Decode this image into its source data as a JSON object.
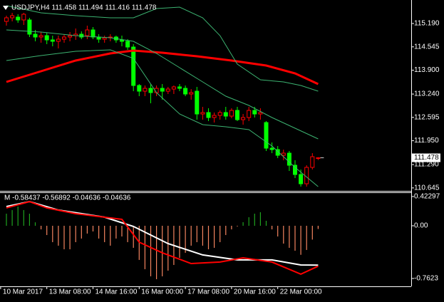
{
  "chart_data": {
    "type": "candlestick",
    "title": "USDJPY,H4  111.458 111.494 111.416 111.478",
    "up_color": "#ff0000",
    "down_color": "#00ff00",
    "candles": [
      [
        115.249,
        115.407,
        115.131,
        115.348
      ],
      [
        115.348,
        115.485,
        115.249,
        115.407
      ],
      [
        115.367,
        115.446,
        115.21,
        115.289
      ],
      [
        115.289,
        115.485,
        115.151,
        115.446
      ],
      [
        115.289,
        115.348,
        114.816,
        114.895
      ],
      [
        114.895,
        115.013,
        114.698,
        114.816
      ],
      [
        114.816,
        114.954,
        114.658,
        114.855
      ],
      [
        114.855,
        114.934,
        114.619,
        114.737
      ],
      [
        114.737,
        114.855,
        114.56,
        114.698
      ],
      [
        114.698,
        114.855,
        114.501,
        114.757
      ],
      [
        114.757,
        114.895,
        114.658,
        114.816
      ],
      [
        114.816,
        114.954,
        114.698,
        114.855
      ],
      [
        114.855,
        115.052,
        114.737,
        114.895
      ],
      [
        114.895,
        114.973,
        114.757,
        114.816
      ],
      [
        114.855,
        115.131,
        114.757,
        115.013
      ],
      [
        115.013,
        115.092,
        114.757,
        114.816
      ],
      [
        114.816,
        114.895,
        114.658,
        114.757
      ],
      [
        114.757,
        114.855,
        114.658,
        114.796
      ],
      [
        114.796,
        114.895,
        114.698,
        114.816
      ],
      [
        114.816,
        114.855,
        114.658,
        114.737
      ],
      [
        114.737,
        114.855,
        114.56,
        114.698
      ],
      [
        114.698,
        114.757,
        114.462,
        114.54
      ],
      [
        114.54,
        114.619,
        113.319,
        113.477
      ],
      [
        113.477,
        113.517,
        113.182,
        113.319
      ],
      [
        113.319,
        113.477,
        113.182,
        113.398
      ],
      [
        113.398,
        113.517,
        112.985,
        113.28
      ],
      [
        113.28,
        113.477,
        113.182,
        113.398
      ],
      [
        113.398,
        113.517,
        113.083,
        113.319
      ],
      [
        113.319,
        113.438,
        113.241,
        113.378
      ],
      [
        113.378,
        113.477,
        113.241,
        113.438
      ],
      [
        113.438,
        113.517,
        113.319,
        113.398
      ],
      [
        113.398,
        113.477,
        113.182,
        113.241
      ],
      [
        113.241,
        113.378,
        113.083,
        113.28
      ],
      [
        113.319,
        113.438,
        112.532,
        112.689
      ],
      [
        112.689,
        112.886,
        112.532,
        112.729
      ],
      [
        112.729,
        112.847,
        112.492,
        112.591
      ],
      [
        112.591,
        112.729,
        112.453,
        112.65
      ],
      [
        112.65,
        112.788,
        112.532,
        112.729
      ],
      [
        112.729,
        112.886,
        112.532,
        112.63
      ],
      [
        112.63,
        112.847,
        112.571,
        112.788
      ],
      [
        112.788,
        112.886,
        112.492,
        112.532
      ],
      [
        112.532,
        112.689,
        112.394,
        112.591
      ],
      [
        112.591,
        112.886,
        112.492,
        112.788
      ],
      [
        112.788,
        112.886,
        112.591,
        112.689
      ],
      [
        112.689,
        112.847,
        112.532,
        112.729
      ],
      [
        112.453,
        112.492,
        111.666,
        111.744
      ],
      [
        111.744,
        111.902,
        111.606,
        111.705
      ],
      [
        111.705,
        111.803,
        111.468,
        111.547
      ],
      [
        111.547,
        111.705,
        111.41,
        111.606
      ],
      [
        111.606,
        111.666,
        111.114,
        111.272
      ],
      [
        111.272,
        111.41,
        110.917,
        111.016
      ],
      [
        111.016,
        111.154,
        110.681,
        110.76
      ],
      [
        110.76,
        111.272,
        110.681,
        111.213
      ],
      [
        111.213,
        111.606,
        111.154,
        111.508
      ],
      [
        111.458,
        111.494,
        111.416,
        111.478
      ]
    ],
    "lines": [
      {
        "color": "#ff0000",
        "width": 3,
        "x": [
          0,
          6,
          12,
          18,
          22,
          27,
          33,
          39,
          45,
          50,
          54
        ],
        "values": [
          113.575,
          113.871,
          114.166,
          114.363,
          114.442,
          114.383,
          114.284,
          114.166,
          114.028,
          113.812,
          113.517
        ]
      },
      {
        "color": "#3cb371",
        "width": 1,
        "x": [
          0,
          6,
          12,
          18,
          22,
          26,
          30,
          34,
          37,
          40,
          44,
          48,
          51,
          54
        ],
        "values": [
          115.682,
          115.485,
          115.407,
          115.348,
          115.348,
          115.604,
          115.643,
          115.348,
          114.855,
          114.068,
          113.635,
          113.575,
          113.477,
          113.319
        ]
      },
      {
        "color": "#3cb371",
        "width": 1,
        "x": [
          0,
          6,
          12,
          18,
          22,
          26,
          30,
          34,
          38,
          42,
          46,
          50,
          54
        ],
        "values": [
          115.013,
          114.954,
          114.855,
          114.796,
          114.698,
          114.363,
          113.969,
          113.575,
          113.182,
          112.926,
          112.591,
          112.296,
          112.0
        ]
      },
      {
        "color": "#3cb371",
        "width": 1,
        "x": [
          0,
          6,
          12,
          18,
          22,
          26,
          30,
          34,
          38,
          42,
          46,
          50,
          54
        ],
        "values": [
          114.166,
          114.304,
          114.422,
          114.462,
          114.226,
          113.28,
          112.689,
          112.394,
          112.335,
          112.256,
          111.803,
          111.213,
          110.681
        ]
      }
    ],
    "ylim": [
      110.563,
      115.781
    ],
    "yticks": [
      {
        "value": 115.19,
        "label": "115.190"
      },
      114.545,
      {
        "value": 113.9,
        "label": "113.900"
      },
      {
        "value": 113.24,
        "label": "113.240"
      },
      112.595,
      {
        "value": 111.95,
        "label": "111.950"
      },
      {
        "value": 111.29,
        "label": "111.290"
      },
      110.645
    ],
    "last_price": 111.478,
    "xticks": [
      {
        "value": -1,
        "label": "10 Mar 2017"
      },
      {
        "value": 7,
        "label": "13 Mar 08:00"
      },
      {
        "value": 15,
        "label": "14 Mar 16:00"
      },
      {
        "value": 23,
        "label": "16 Mar 00:00"
      },
      {
        "value": 31,
        "label": "17 Mar 08:00"
      },
      {
        "value": 39,
        "label": "20 Mar 16:00"
      },
      {
        "value": 47,
        "label": "22 Mar 00:00"
      }
    ],
    "indicator": {
      "type": "histogram",
      "title": "M -0.58437 -0.56892 -0.04636 -0.04636",
      "pos_color": "#1fa31f",
      "neg_color": "#f4845f",
      "values": [
        0.175,
        0.227,
        0.278,
        0.227,
        0.175,
        0.05,
        -0.052,
        -0.134,
        -0.237,
        -0.288,
        -0.34,
        -0.34,
        -0.237,
        -0.185,
        -0.113,
        -0.082,
        -0.185,
        -0.237,
        -0.288,
        -0.185,
        -0.155,
        -0.237,
        -0.319,
        -0.494,
        -0.628,
        -0.731,
        -0.773,
        -0.731,
        -0.649,
        -0.567,
        -0.464,
        -0.391,
        -0.288,
        -0.237,
        -0.288,
        -0.34,
        -0.319,
        -0.237,
        -0.134,
        -0.052,
        -0.01,
        0.052,
        0.124,
        0.175,
        0.196,
        0.072,
        -0.052,
        -0.155,
        -0.258,
        -0.319,
        -0.361,
        -0.42,
        -0.35,
        -0.2,
        -0.04636
      ],
      "lines": [
        {
          "color": "#ffffff",
          "width": 2,
          "x": [
            0,
            4,
            9,
            17,
            22,
            28,
            34,
            40,
            46,
            51,
            54
          ],
          "values": [
            0.278,
            0.35,
            0.227,
            0.124,
            -0.01,
            -0.258,
            -0.422,
            -0.494,
            -0.494,
            -0.567,
            -0.56892
          ]
        },
        {
          "color": "#ff0000",
          "width": 2,
          "x": [
            0,
            4,
            7,
            12,
            20,
            23,
            27,
            32,
            37,
            41,
            46,
            51,
            54
          ],
          "values": [
            0.258,
            0.35,
            0.258,
            0.175,
            0.093,
            -0.237,
            -0.391,
            -0.546,
            -0.525,
            -0.464,
            -0.525,
            -0.7,
            -0.58437
          ]
        }
      ],
      "ylim": [
        -0.876,
        0.484
      ],
      "yticks": [
        0.42297,
        {
          "value": 0,
          "label": "0.00"
        },
        -0.7623
      ]
    }
  }
}
